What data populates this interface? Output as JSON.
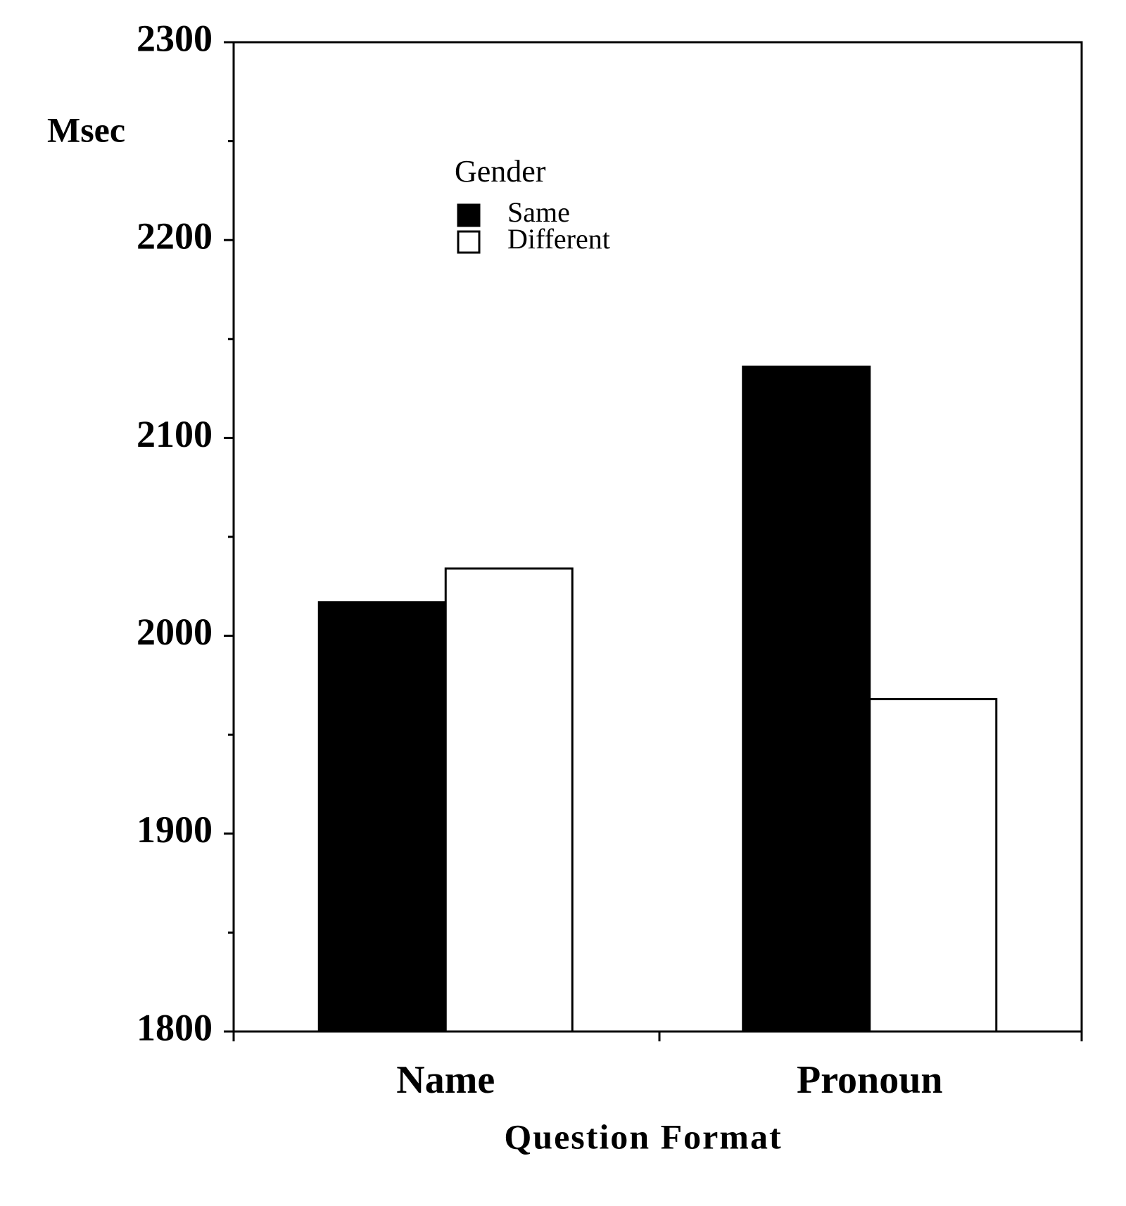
{
  "chart_data": {
    "type": "bar",
    "y_label": "Msec",
    "x_label": "Question Format",
    "legend_title": "Gender",
    "categories": [
      "Name",
      "Pronoun"
    ],
    "series": [
      {
        "name": "Same",
        "color": "#000000",
        "values": [
          2017,
          2136
        ]
      },
      {
        "name": "Different",
        "color": "#ffffff",
        "values": [
          2034,
          1968
        ]
      }
    ],
    "ylim": [
      1800,
      2300
    ],
    "yticks": [
      1800,
      1900,
      2000,
      2100,
      2200,
      2300
    ],
    "minor_yticks": [
      1850,
      1950,
      2050,
      2150,
      2250
    ],
    "grid": false
  }
}
